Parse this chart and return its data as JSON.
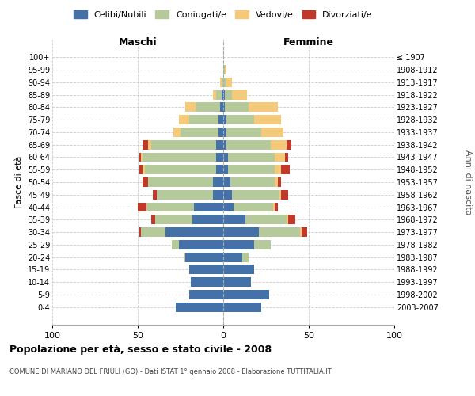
{
  "age_groups": [
    "0-4",
    "5-9",
    "10-14",
    "15-19",
    "20-24",
    "25-29",
    "30-34",
    "35-39",
    "40-44",
    "45-49",
    "50-54",
    "55-59",
    "60-64",
    "65-69",
    "70-74",
    "75-79",
    "80-84",
    "85-89",
    "90-94",
    "95-99",
    "100+"
  ],
  "birth_years": [
    "2003-2007",
    "1998-2002",
    "1993-1997",
    "1988-1992",
    "1983-1987",
    "1978-1982",
    "1973-1977",
    "1968-1972",
    "1963-1967",
    "1958-1962",
    "1953-1957",
    "1948-1952",
    "1943-1947",
    "1938-1942",
    "1933-1937",
    "1928-1932",
    "1923-1927",
    "1918-1922",
    "1913-1917",
    "1908-1912",
    "≤ 1907"
  ],
  "male": {
    "celibi": [
      28,
      20,
      19,
      20,
      22,
      26,
      34,
      18,
      17,
      6,
      6,
      4,
      4,
      4,
      3,
      3,
      2,
      1,
      0,
      0,
      0
    ],
    "coniugati": [
      0,
      0,
      0,
      0,
      1,
      4,
      14,
      22,
      28,
      33,
      38,
      42,
      43,
      38,
      22,
      17,
      14,
      3,
      1,
      0,
      0
    ],
    "vedovi": [
      0,
      0,
      0,
      0,
      0,
      0,
      0,
      0,
      0,
      0,
      0,
      1,
      1,
      2,
      4,
      6,
      6,
      2,
      1,
      0,
      0
    ],
    "divorziati": [
      0,
      0,
      0,
      0,
      0,
      0,
      1,
      2,
      5,
      2,
      3,
      2,
      1,
      3,
      0,
      0,
      0,
      0,
      0,
      0,
      0
    ]
  },
  "female": {
    "nubili": [
      22,
      27,
      16,
      18,
      11,
      18,
      21,
      13,
      6,
      5,
      4,
      3,
      3,
      2,
      2,
      2,
      1,
      1,
      0,
      0,
      0
    ],
    "coniugate": [
      0,
      0,
      0,
      0,
      4,
      10,
      24,
      24,
      23,
      28,
      26,
      27,
      27,
      26,
      20,
      16,
      14,
      4,
      2,
      1,
      0
    ],
    "vedove": [
      0,
      0,
      0,
      0,
      0,
      0,
      1,
      1,
      1,
      1,
      2,
      4,
      6,
      9,
      13,
      16,
      17,
      9,
      3,
      1,
      0
    ],
    "divorziate": [
      0,
      0,
      0,
      0,
      0,
      0,
      3,
      4,
      2,
      4,
      2,
      5,
      2,
      3,
      0,
      0,
      0,
      0,
      0,
      0,
      0
    ]
  },
  "colors": {
    "celibi": "#4472a8",
    "coniugati": "#b5c99a",
    "vedovi": "#f5c97a",
    "divorziati": "#c0392b"
  },
  "title": "Popolazione per età, sesso e stato civile - 2008",
  "subtitle": "COMUNE DI MARIANO DEL FRIULI (GO) - Dati ISTAT 1° gennaio 2008 - Elaborazione TUTTITALIA.IT",
  "xlabel_left": "Maschi",
  "xlabel_right": "Femmine",
  "ylabel_left": "Fasce di età",
  "ylabel_right": "Anni di nascita",
  "xlim": 100,
  "background_color": "#ffffff",
  "plot_bg_color": "#ffffff",
  "grid_color": "#cccccc",
  "legend_labels": [
    "Celibi/Nubili",
    "Coniugati/e",
    "Vedovi/e",
    "Divorziati/e"
  ]
}
